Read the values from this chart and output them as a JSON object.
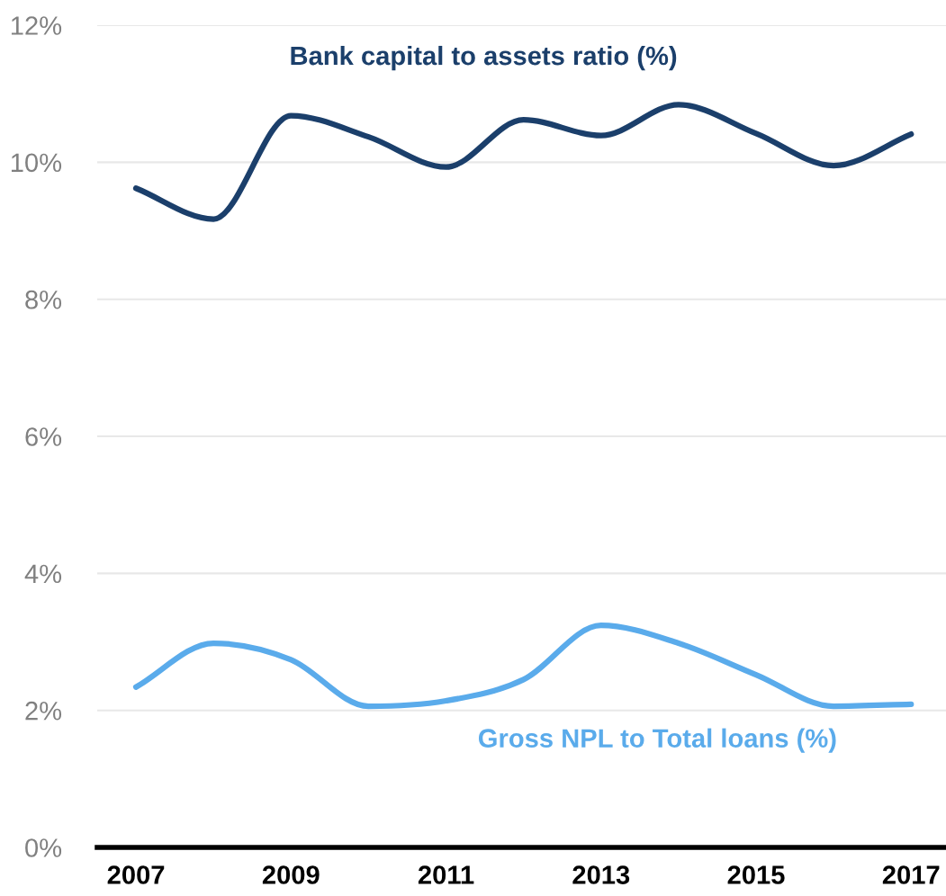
{
  "chart_data": {
    "type": "line",
    "x": [
      2007,
      2008,
      2009,
      2010,
      2011,
      2012,
      2013,
      2014,
      2015,
      2016,
      2017
    ],
    "series": [
      {
        "name": "Bank capital to assets ratio (%)",
        "color": "#1b3f6b",
        "values": [
          9.62,
          9.17,
          10.68,
          10.37,
          9.93,
          10.62,
          10.39,
          10.84,
          10.42,
          9.95,
          10.41
        ]
      },
      {
        "name": "Gross NPL to Total loans (%)",
        "color": "#5aabeb",
        "values": [
          2.34,
          2.98,
          2.74,
          2.06,
          2.14,
          2.45,
          3.24,
          2.98,
          2.52,
          2.06,
          2.09
        ]
      }
    ],
    "xlim": [
      2006.5,
      2017.45
    ],
    "xticks": [
      2007,
      2009,
      2011,
      2013,
      2015,
      2017
    ],
    "ylim": [
      0,
      12
    ],
    "yticks": [
      {
        "value": 0,
        "label": "0%"
      },
      {
        "value": 2,
        "label": "2%"
      },
      {
        "value": 4,
        "label": "4%"
      },
      {
        "value": 6,
        "label": "6%"
      },
      {
        "value": 8,
        "label": "8%"
      },
      {
        "value": 10,
        "label": "10%"
      },
      {
        "value": 12,
        "label": "12%"
      }
    ],
    "grid": "y",
    "legend": false,
    "marker": "none",
    "line_style": "solid"
  }
}
